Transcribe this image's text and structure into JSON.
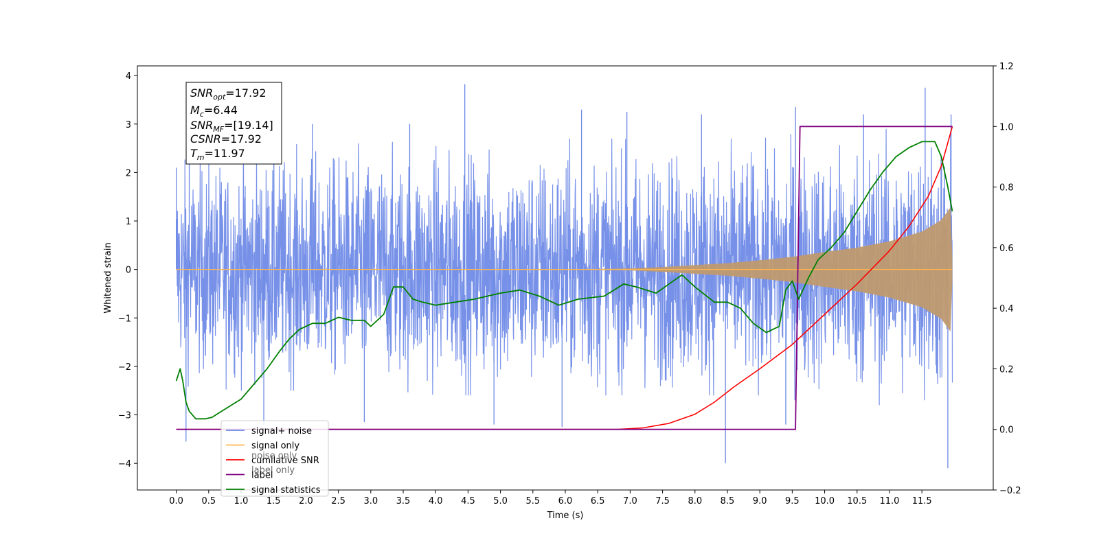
{
  "chart_data": {
    "type": "line",
    "xlabel": "Time (s)",
    "ylabel": "Whitened strain",
    "xlim": [
      -0.6,
      12.6
    ],
    "ylim": [
      -4.55,
      4.2
    ],
    "y2lim": [
      -0.2,
      1.2
    ],
    "x_ticks": [
      "0.0",
      "0.5",
      "1.0",
      "1.5",
      "2.0",
      "2.5",
      "3.0",
      "3.5",
      "4.0",
      "4.5",
      "5.0",
      "5.5",
      "6.0",
      "6.5",
      "7.0",
      "7.5",
      "8.0",
      "8.5",
      "9.0",
      "9.5",
      "10.0",
      "10.5",
      "11.0",
      "11.5"
    ],
    "y_ticks": [
      "4",
      "3",
      "2",
      "1",
      "0",
      "−1",
      "−2",
      "−3",
      "−4"
    ],
    "y2_ticks": [
      "1.2",
      "1.0",
      "0.8",
      "0.6",
      "0.4",
      "0.2",
      "0.0",
      "−0.2"
    ],
    "info_box": {
      "line1_sym": "SNR",
      "line1_sub": "opt",
      "line1_val": "=17.92",
      "line2_sym": "M",
      "line2_sub": "c",
      "line2_val": "=6.44",
      "line3_sym": "SNR",
      "line3_sub": "MF",
      "line3_val": "=[19.14]",
      "line4_sym": "CSNR",
      "line4_val": "=17.92",
      "line5_sym": "T",
      "line5_sub": "m",
      "line5_val": "=11.97"
    },
    "legend": [
      {
        "label": "signal+ noise",
        "color": "#6b88e6"
      },
      {
        "label": "signal only",
        "color": "#ffb74d"
      },
      {
        "label": "cumilative SNR",
        "color": "#ff0000"
      },
      {
        "label": "label",
        "color": "#800080"
      },
      {
        "label": "signal statistics",
        "color": "#008000"
      }
    ],
    "legend_ghost_text": [
      "noise only",
      "label only"
    ],
    "series": [
      {
        "name": "signal+ noise",
        "axis": "left",
        "color": "#6b88e6",
        "description_envelope": {
          "t": [
            0.0,
            1.0,
            2.0,
            3.0,
            4.0,
            5.0,
            6.0,
            7.0,
            8.0,
            9.0,
            9.5,
            10.0,
            10.5,
            11.0,
            11.5,
            11.8,
            11.97
          ],
          "upper": [
            2.4,
            2.5,
            2.6,
            2.6,
            2.7,
            2.7,
            2.7,
            2.7,
            2.7,
            2.7,
            2.8,
            2.8,
            2.9,
            2.9,
            3.0,
            3.1,
            3.2
          ],
          "lower": [
            -2.4,
            -2.5,
            -2.5,
            -2.5,
            -2.6,
            -2.6,
            -2.6,
            -2.6,
            -2.6,
            -2.6,
            -2.7,
            -2.7,
            -2.8,
            -2.8,
            -2.9,
            -3.0,
            -3.1
          ]
        },
        "spikes": [
          {
            "t": 0.0,
            "v": 2.1
          },
          {
            "t": 0.15,
            "v": -3.55
          },
          {
            "t": 0.2,
            "v": 3.0
          },
          {
            "t": 1.35,
            "v": -3.2
          },
          {
            "t": 2.1,
            "v": 3.0
          },
          {
            "t": 2.9,
            "v": -3.15
          },
          {
            "t": 3.6,
            "v": 3.0
          },
          {
            "t": 4.45,
            "v": 3.82
          },
          {
            "t": 4.9,
            "v": -3.2
          },
          {
            "t": 5.95,
            "v": -3.25
          },
          {
            "t": 6.25,
            "v": 3.3
          },
          {
            "t": 6.95,
            "v": 3.25
          },
          {
            "t": 8.1,
            "v": 3.2
          },
          {
            "t": 8.47,
            "v": -4.0
          },
          {
            "t": 9.4,
            "v": -3.2
          },
          {
            "t": 9.55,
            "v": 3.35
          },
          {
            "t": 10.6,
            "v": 3.2
          },
          {
            "t": 11.55,
            "v": 3.75
          },
          {
            "t": 11.9,
            "v": -4.1
          },
          {
            "t": 11.95,
            "v": 3.2
          }
        ]
      },
      {
        "name": "signal only",
        "axis": "left",
        "color": "#ffb74d",
        "amplitude_envelope": {
          "t": [
            0.0,
            6.5,
            7.0,
            7.5,
            8.0,
            8.5,
            9.0,
            9.5,
            10.0,
            10.5,
            11.0,
            11.5,
            11.8,
            11.95,
            11.97
          ],
          "amp": [
            0.0,
            0.01,
            0.02,
            0.05,
            0.09,
            0.13,
            0.19,
            0.26,
            0.36,
            0.45,
            0.58,
            0.78,
            1.02,
            1.3,
            0.2
          ]
        }
      },
      {
        "name": "cumilative SNR",
        "axis": "right",
        "color": "#ff0000",
        "x": [
          0.0,
          6.8,
          7.2,
          7.6,
          8.0,
          8.3,
          8.6,
          9.0,
          9.5,
          10.0,
          10.5,
          11.0,
          11.3,
          11.6,
          11.8,
          11.97
        ],
        "y": [
          0.0,
          0.0,
          0.005,
          0.02,
          0.05,
          0.09,
          0.14,
          0.2,
          0.28,
          0.38,
          0.48,
          0.59,
          0.67,
          0.77,
          0.87,
          1.0
        ]
      },
      {
        "name": "label",
        "axis": "right",
        "color": "#800080",
        "x": [
          0.0,
          9.55,
          9.62,
          11.97
        ],
        "y": [
          0.0,
          0.0,
          1.0,
          1.0
        ]
      },
      {
        "name": "signal statistics",
        "axis": "right",
        "color": "#008000",
        "x": [
          0.0,
          0.06,
          0.1,
          0.15,
          0.2,
          0.3,
          0.45,
          0.55,
          0.7,
          0.85,
          1.0,
          1.2,
          1.4,
          1.6,
          1.75,
          1.9,
          2.0,
          2.1,
          2.3,
          2.5,
          2.7,
          2.9,
          3.0,
          3.2,
          3.35,
          3.5,
          3.65,
          3.8,
          4.0,
          4.3,
          4.6,
          5.0,
          5.3,
          5.6,
          5.9,
          6.2,
          6.6,
          6.9,
          7.1,
          7.4,
          7.6,
          7.8,
          8.0,
          8.3,
          8.5,
          8.7,
          8.9,
          9.1,
          9.3,
          9.4,
          9.5,
          9.6,
          9.75,
          9.9,
          10.1,
          10.3,
          10.5,
          10.7,
          10.9,
          11.1,
          11.3,
          11.5,
          11.7,
          11.8,
          11.9,
          11.97
        ],
        "y": [
          0.16,
          0.2,
          0.16,
          0.09,
          0.06,
          0.035,
          0.035,
          0.04,
          0.06,
          0.08,
          0.1,
          0.15,
          0.2,
          0.26,
          0.3,
          0.33,
          0.34,
          0.35,
          0.35,
          0.37,
          0.36,
          0.36,
          0.34,
          0.38,
          0.47,
          0.47,
          0.43,
          0.42,
          0.41,
          0.42,
          0.43,
          0.45,
          0.46,
          0.44,
          0.41,
          0.43,
          0.44,
          0.48,
          0.47,
          0.45,
          0.48,
          0.51,
          0.47,
          0.42,
          0.42,
          0.4,
          0.35,
          0.32,
          0.34,
          0.46,
          0.49,
          0.43,
          0.5,
          0.56,
          0.6,
          0.65,
          0.72,
          0.79,
          0.85,
          0.9,
          0.93,
          0.95,
          0.95,
          0.9,
          0.8,
          0.72
        ]
      }
    ]
  }
}
